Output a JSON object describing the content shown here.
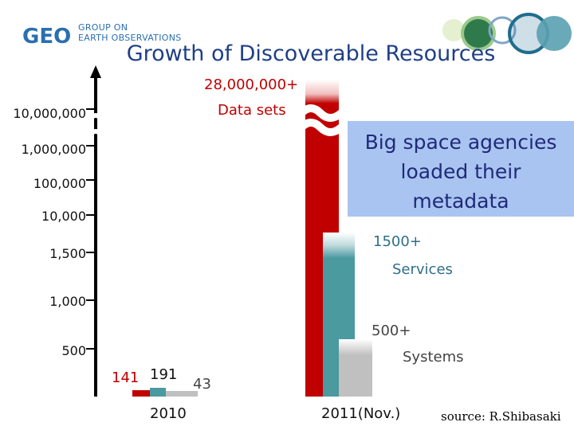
{
  "header": {
    "logo_letters": "GEO",
    "logo_line1": "GROUP ON",
    "logo_line2": "EARTH OBSERVATIONS"
  },
  "chart_data": {
    "type": "bar",
    "title": "Growth of Discoverable Resources",
    "y_ticks": [
      "10,000,000",
      "1,000,000",
      "100,000",
      "10,000",
      "1,500",
      "1,000",
      "500"
    ],
    "categories": [
      "2010",
      "2011(Nov.)"
    ],
    "series": [
      {
        "name": "Data sets",
        "color": "#c00000",
        "values": [
          141,
          28000000
        ],
        "labels": [
          "141",
          "28,000,000+"
        ]
      },
      {
        "name": "Services",
        "color": "#4a9aa0",
        "values": [
          191,
          1500
        ],
        "labels": [
          "191",
          "1500+"
        ]
      },
      {
        "name": "Systems",
        "color": "#c0c0c0",
        "values": [
          43,
          500
        ],
        "labels": [
          "43",
          "500+"
        ]
      }
    ],
    "annotations": {
      "datasets_name": "Data sets",
      "services_name": "Services",
      "systems_name": "Systems",
      "callout": [
        "Big space agencies",
        "loaded their",
        "metadata"
      ]
    },
    "xlabel": "",
    "ylabel": ""
  },
  "source": "source: R.Shibasaki"
}
